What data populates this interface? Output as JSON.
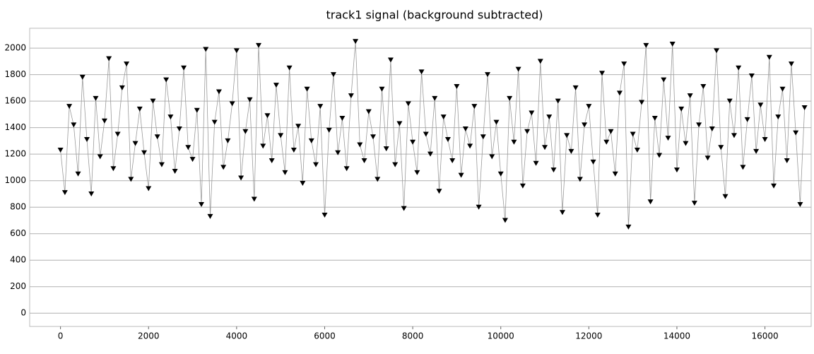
{
  "chart_data": {
    "type": "line",
    "title": "track1 signal (background subtracted)",
    "x": [
      0,
      100,
      200,
      300,
      400,
      500,
      600,
      700,
      800,
      900,
      1000,
      1100,
      1200,
      1300,
      1400,
      1500,
      1600,
      1700,
      1800,
      1900,
      2000,
      2100,
      2200,
      2300,
      2400,
      2500,
      2600,
      2700,
      2800,
      2900,
      3000,
      3100,
      3200,
      3300,
      3400,
      3500,
      3600,
      3700,
      3800,
      3900,
      4000,
      4100,
      4200,
      4300,
      4400,
      4500,
      4600,
      4700,
      4800,
      4900,
      5000,
      5100,
      5200,
      5300,
      5400,
      5500,
      5600,
      5700,
      5800,
      5900,
      6000,
      6100,
      6200,
      6300,
      6400,
      6500,
      6600,
      6700,
      6800,
      6900,
      7000,
      7100,
      7200,
      7300,
      7400,
      7500,
      7600,
      7700,
      7800,
      7900,
      8000,
      8100,
      8200,
      8300,
      8400,
      8500,
      8600,
      8700,
      8800,
      8900,
      9000,
      9100,
      9200,
      9300,
      9400,
      9500,
      9600,
      9700,
      9800,
      9900,
      10000,
      10100,
      10200,
      10300,
      10400,
      10500,
      10600,
      10700,
      10800,
      10900,
      11000,
      11100,
      11200,
      11300,
      11400,
      11500,
      11600,
      11700,
      11800,
      11900,
      12000,
      12100,
      12200,
      12300,
      12400,
      12500,
      12600,
      12700,
      12800,
      12900,
      13000,
      13100,
      13200,
      13300,
      13400,
      13500,
      13600,
      13700,
      13800,
      13900,
      14000,
      14100,
      14200,
      14300,
      14400,
      14500,
      14600,
      14700,
      14800,
      14900,
      15000,
      15100,
      15200,
      15300,
      15400,
      15500,
      15600,
      15700,
      15800,
      15900,
      16000,
      16100,
      16200,
      16300,
      16400,
      16500,
      16600,
      16700,
      16800,
      16900
    ],
    "series": [
      {
        "color": "#000000",
        "line_color": "#9a9a9a",
        "values": [
          1230,
          910,
          1560,
          1420,
          1050,
          1780,
          1310,
          900,
          1620,
          1180,
          1450,
          1920,
          1090,
          1350,
          1700,
          1880,
          1010,
          1280,
          1540,
          1210,
          940,
          1600,
          1330,
          1120,
          1760,
          1480,
          1070,
          1390,
          1850,
          1250,
          1160,
          1530,
          820,
          1990,
          730,
          1440,
          1670,
          1100,
          1300,
          1580,
          1980,
          1020,
          1370,
          1610,
          860,
          2020,
          1260,
          1490,
          1150,
          1720,
          1340,
          1060,
          1850,
          1230,
          1410,
          980,
          1690,
          1300,
          1120,
          1560,
          740,
          1380,
          1800,
          1210,
          1470,
          1090,
          1640,
          2050,
          1270,
          1150,
          1520,
          1330,
          1010,
          1690,
          1240,
          1910,
          1120,
          1430,
          790,
          1580,
          1290,
          1060,
          1820,
          1350,
          1200,
          1620,
          920,
          1480,
          1310,
          1150,
          1710,
          1040,
          1390,
          1260,
          1560,
          800,
          1330,
          1800,
          1180,
          1440,
          1050,
          700,
          1620,
          1290,
          1840,
          960,
          1370,
          1510,
          1130,
          1900,
          1250,
          1480,
          1080,
          1600,
          760,
          1340,
          1220,
          1700,
          1010,
          1420,
          1560,
          1140,
          740,
          1810,
          1290,
          1370,
          1050,
          1660,
          1880,
          650,
          1350,
          1230,
          1590,
          2020,
          840,
          1470,
          1190,
          1760,
          1320,
          2030,
          1080,
          1540,
          1280,
          1640,
          830,
          1420,
          1710,
          1170,
          1390,
          1980,
          1250,
          880,
          1600,
          1340,
          1850,
          1100,
          1460,
          1790,
          1220,
          1570,
          1310,
          1930,
          960,
          1480,
          1690,
          1150,
          1880,
          1360,
          820,
          1550
        ]
      }
    ],
    "xlim": [
      -700,
      17050
    ],
    "ylim": [
      -100,
      2150
    ],
    "xticks": [
      0,
      2000,
      4000,
      6000,
      8000,
      10000,
      12000,
      14000,
      16000
    ],
    "yticks": [
      0,
      200,
      400,
      600,
      800,
      1000,
      1200,
      1400,
      1600,
      1800,
      2000
    ],
    "grid": true,
    "marker": "triangle-down"
  }
}
